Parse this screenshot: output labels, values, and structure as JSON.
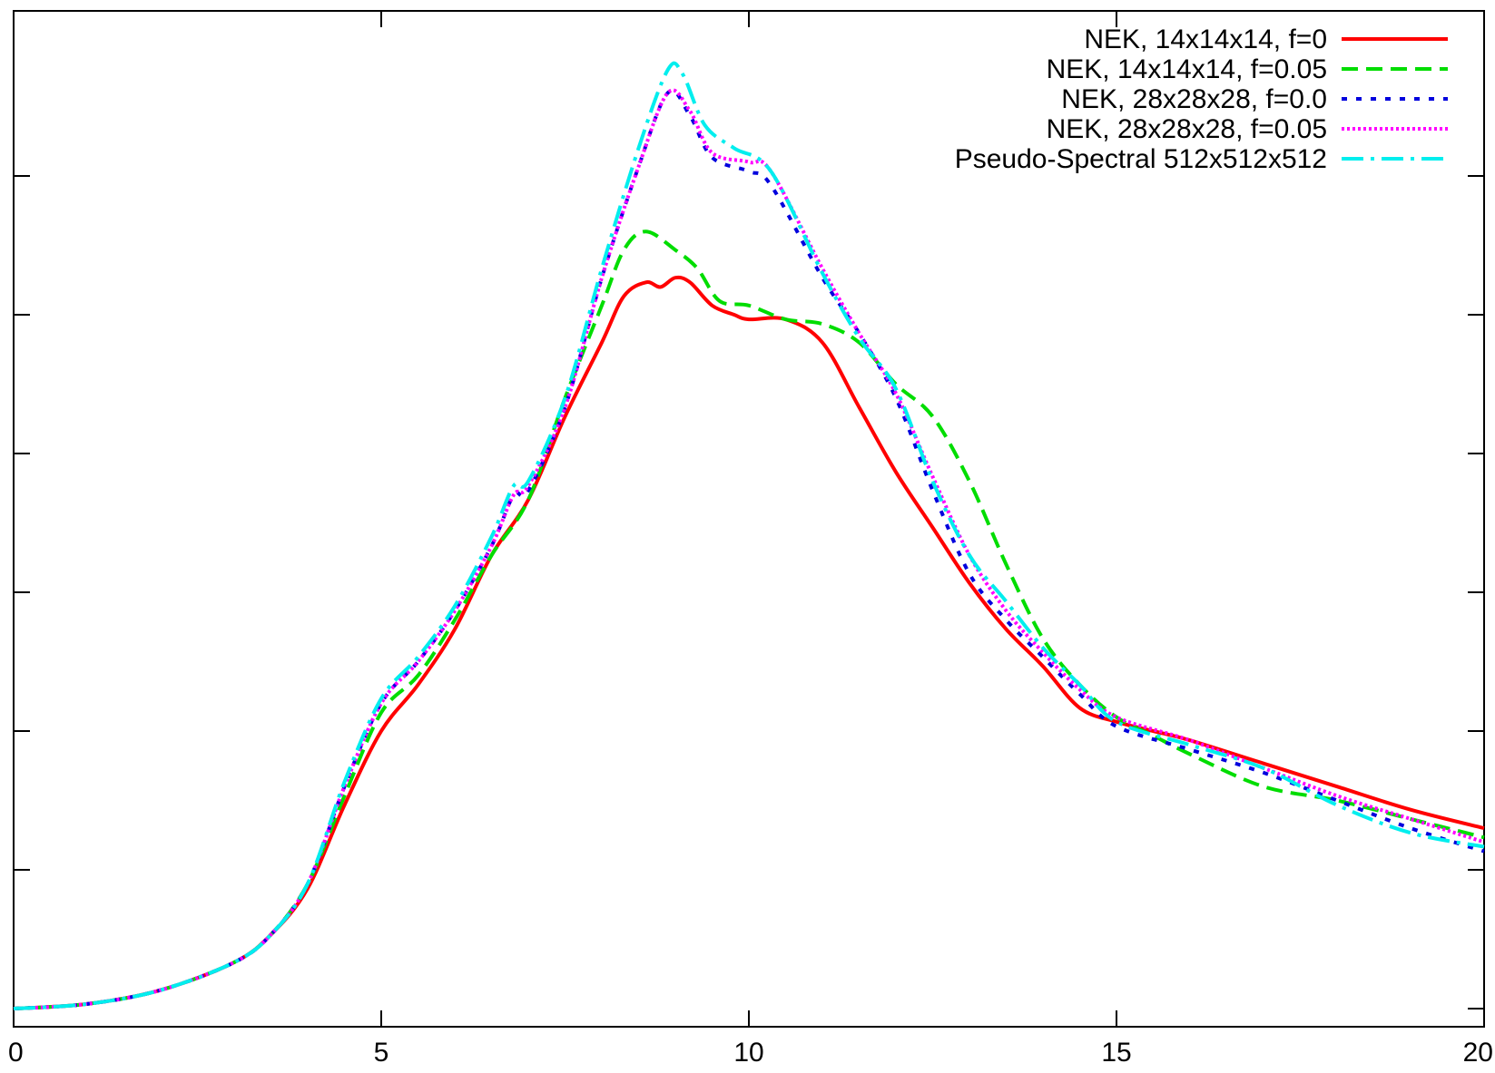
{
  "chart_data": {
    "type": "line",
    "title": "",
    "xlabel": "",
    "ylabel": "",
    "xlim": [
      0,
      20
    ],
    "ylim": [
      0,
      1
    ],
    "x_ticks": [
      0,
      5,
      10,
      15,
      20
    ],
    "x_tick_labels": [
      "0",
      "5",
      "10",
      "15",
      "20"
    ],
    "y_ticks": [
      0.0,
      0.15,
      0.3,
      0.45,
      0.6,
      0.75,
      0.9
    ],
    "y_tick_labels_shown": false,
    "grid": false,
    "legend_position": "top-right",
    "series": [
      {
        "name": "NEK, 14x14x14, f=0",
        "color": "#ff0000",
        "dash": "solid",
        "points": [
          [
            0,
            0.0
          ],
          [
            1,
            0.005
          ],
          [
            2,
            0.02
          ],
          [
            3,
            0.05
          ],
          [
            3.5,
            0.08
          ],
          [
            4,
            0.13
          ],
          [
            4.5,
            0.22
          ],
          [
            5,
            0.3
          ],
          [
            5.5,
            0.35
          ],
          [
            6,
            0.41
          ],
          [
            6.5,
            0.49
          ],
          [
            7,
            0.55
          ],
          [
            7.5,
            0.64
          ],
          [
            8,
            0.72
          ],
          [
            8.3,
            0.77
          ],
          [
            8.6,
            0.785
          ],
          [
            8.8,
            0.78
          ],
          [
            9.0,
            0.79
          ],
          [
            9.2,
            0.785
          ],
          [
            9.5,
            0.76
          ],
          [
            9.8,
            0.75
          ],
          [
            10.0,
            0.745
          ],
          [
            10.5,
            0.745
          ],
          [
            11,
            0.72
          ],
          [
            11.5,
            0.65
          ],
          [
            12,
            0.58
          ],
          [
            12.5,
            0.52
          ],
          [
            13,
            0.46
          ],
          [
            13.5,
            0.41
          ],
          [
            14,
            0.37
          ],
          [
            14.5,
            0.325
          ],
          [
            15,
            0.31
          ],
          [
            15.5,
            0.3
          ],
          [
            16,
            0.29
          ],
          [
            17,
            0.265
          ],
          [
            18,
            0.24
          ],
          [
            19,
            0.215
          ],
          [
            20,
            0.195
          ]
        ]
      },
      {
        "name": "NEK, 14x14x14, f=0.05",
        "color": "#00dd00",
        "dash": "dashed",
        "points": [
          [
            0,
            0.0
          ],
          [
            1,
            0.005
          ],
          [
            2,
            0.02
          ],
          [
            3,
            0.05
          ],
          [
            3.5,
            0.08
          ],
          [
            4,
            0.135
          ],
          [
            4.5,
            0.23
          ],
          [
            5,
            0.32
          ],
          [
            5.5,
            0.36
          ],
          [
            6,
            0.42
          ],
          [
            6.5,
            0.49
          ],
          [
            7,
            0.55
          ],
          [
            7.5,
            0.66
          ],
          [
            8,
            0.76
          ],
          [
            8.3,
            0.82
          ],
          [
            8.6,
            0.84
          ],
          [
            9.0,
            0.82
          ],
          [
            9.3,
            0.8
          ],
          [
            9.6,
            0.765
          ],
          [
            10,
            0.76
          ],
          [
            10.5,
            0.745
          ],
          [
            11,
            0.74
          ],
          [
            11.5,
            0.72
          ],
          [
            12,
            0.675
          ],
          [
            12.5,
            0.64
          ],
          [
            13,
            0.57
          ],
          [
            13.5,
            0.48
          ],
          [
            14,
            0.4
          ],
          [
            14.5,
            0.35
          ],
          [
            15,
            0.315
          ],
          [
            15.5,
            0.295
          ],
          [
            16,
            0.275
          ],
          [
            17,
            0.24
          ],
          [
            18,
            0.225
          ],
          [
            19,
            0.205
          ],
          [
            20,
            0.185
          ]
        ]
      },
      {
        "name": "NEK, 28x28x28, f=0.0",
        "color": "#0000dd",
        "dash": "dotted",
        "points": [
          [
            0,
            0.0
          ],
          [
            1,
            0.005
          ],
          [
            2,
            0.02
          ],
          [
            3,
            0.05
          ],
          [
            3.5,
            0.08
          ],
          [
            4,
            0.135
          ],
          [
            4.5,
            0.24
          ],
          [
            5,
            0.33
          ],
          [
            5.5,
            0.375
          ],
          [
            6,
            0.43
          ],
          [
            6.5,
            0.5
          ],
          [
            6.8,
            0.555
          ],
          [
            7,
            0.56
          ],
          [
            7.5,
            0.65
          ],
          [
            8,
            0.79
          ],
          [
            8.5,
            0.91
          ],
          [
            8.9,
            0.99
          ],
          [
            9.2,
            0.965
          ],
          [
            9.5,
            0.92
          ],
          [
            10,
            0.905
          ],
          [
            10.3,
            0.89
          ],
          [
            11,
            0.79
          ],
          [
            11.5,
            0.73
          ],
          [
            12,
            0.66
          ],
          [
            12.5,
            0.56
          ],
          [
            13,
            0.47
          ],
          [
            13.5,
            0.42
          ],
          [
            14,
            0.38
          ],
          [
            14.5,
            0.34
          ],
          [
            15,
            0.305
          ],
          [
            16,
            0.28
          ],
          [
            17,
            0.255
          ],
          [
            18,
            0.225
          ],
          [
            19,
            0.195
          ],
          [
            20,
            0.17
          ]
        ]
      },
      {
        "name": "NEK, 28x28x28, f=0.05",
        "color": "#ff00ff",
        "dash": "densely-dotted",
        "points": [
          [
            0,
            0.0
          ],
          [
            1,
            0.005
          ],
          [
            2,
            0.02
          ],
          [
            3,
            0.05
          ],
          [
            3.5,
            0.08
          ],
          [
            4,
            0.135
          ],
          [
            4.5,
            0.24
          ],
          [
            5,
            0.33
          ],
          [
            5.5,
            0.375
          ],
          [
            6,
            0.43
          ],
          [
            6.5,
            0.5
          ],
          [
            6.8,
            0.555
          ],
          [
            7,
            0.565
          ],
          [
            7.5,
            0.65
          ],
          [
            8,
            0.79
          ],
          [
            8.5,
            0.91
          ],
          [
            8.9,
            0.99
          ],
          [
            9.2,
            0.97
          ],
          [
            9.5,
            0.925
          ],
          [
            10,
            0.915
          ],
          [
            10.3,
            0.905
          ],
          [
            11,
            0.8
          ],
          [
            11.5,
            0.73
          ],
          [
            12,
            0.665
          ],
          [
            12.5,
            0.575
          ],
          [
            13,
            0.49
          ],
          [
            13.5,
            0.43
          ],
          [
            14,
            0.385
          ],
          [
            14.5,
            0.345
          ],
          [
            15,
            0.315
          ],
          [
            16,
            0.29
          ],
          [
            17,
            0.26
          ],
          [
            18,
            0.23
          ],
          [
            19,
            0.205
          ],
          [
            20,
            0.18
          ]
        ]
      },
      {
        "name": "Pseudo-Spectral 512x512x512",
        "color": "#00eeee",
        "dash": "dash-dot",
        "points": [
          [
            0,
            0.0
          ],
          [
            1,
            0.005
          ],
          [
            2,
            0.02
          ],
          [
            3,
            0.05
          ],
          [
            3.5,
            0.08
          ],
          [
            4,
            0.135
          ],
          [
            4.5,
            0.245
          ],
          [
            5,
            0.335
          ],
          [
            5.5,
            0.38
          ],
          [
            6,
            0.435
          ],
          [
            6.5,
            0.51
          ],
          [
            6.8,
            0.565
          ],
          [
            7,
            0.57
          ],
          [
            7.5,
            0.66
          ],
          [
            8,
            0.8
          ],
          [
            8.5,
            0.93
          ],
          [
            8.9,
            1.015
          ],
          [
            9.1,
            1.01
          ],
          [
            9.4,
            0.955
          ],
          [
            9.8,
            0.93
          ],
          [
            10.3,
            0.905
          ],
          [
            11,
            0.795
          ],
          [
            11.5,
            0.725
          ],
          [
            12,
            0.67
          ],
          [
            12.5,
            0.57
          ],
          [
            13,
            0.49
          ],
          [
            13.5,
            0.44
          ],
          [
            14,
            0.39
          ],
          [
            14.5,
            0.35
          ],
          [
            15,
            0.31
          ],
          [
            16,
            0.285
          ],
          [
            17,
            0.26
          ],
          [
            18,
            0.22
          ],
          [
            19,
            0.19
          ],
          [
            20,
            0.175
          ]
        ]
      }
    ]
  }
}
